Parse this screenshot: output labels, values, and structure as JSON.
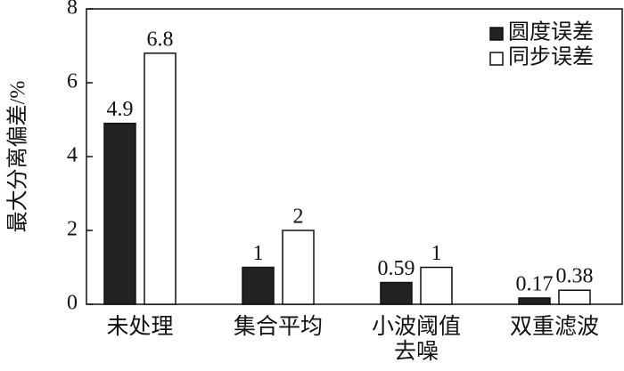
{
  "chart_data": {
    "type": "bar",
    "y_label": "最大分离偏差/%",
    "categories": [
      "未处理",
      "集合平均",
      "小波阈值去噪",
      "双重滤波"
    ],
    "series": [
      {
        "name": "圆度误差",
        "color": "#222222",
        "values": [
          4.9,
          1,
          0.59,
          0.17
        ]
      },
      {
        "name": "同步误差",
        "color": "#ffffff",
        "values": [
          6.8,
          2,
          1,
          0.38
        ]
      }
    ],
    "ylim": [
      0,
      8
    ],
    "yticks": [
      0,
      2,
      4,
      6,
      8
    ],
    "legend": "upper right"
  }
}
